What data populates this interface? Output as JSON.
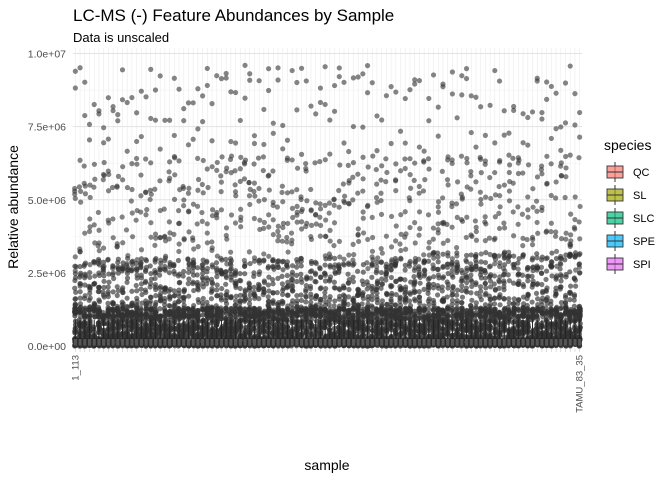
{
  "chart_data": {
    "type": "box",
    "title": "LC-MS (-) Feature Abundances by Sample",
    "subtitle": "Data is unscaled",
    "xlabel": "sample",
    "ylabel": "Relative abundance",
    "ylim": [
      0,
      10000000
    ],
    "yticks": [
      {
        "value": 0,
        "label": "0.0e+00"
      },
      {
        "value": 2500000,
        "label": "2.5e+06"
      },
      {
        "value": 5000000,
        "label": "5.0e+06"
      },
      {
        "value": 7500000,
        "label": "7.5e+06"
      },
      {
        "value": 10000000,
        "label": "1.0e+07"
      }
    ],
    "grid": true,
    "sample_count": 108,
    "visible_x_tick_labels": [
      "1_113",
      "TAMU_83_35"
    ],
    "legend": {
      "title": "species",
      "position": "right",
      "entries": [
        {
          "name": "QC",
          "color": "#F8766D"
        },
        {
          "name": "SL",
          "color": "#A3A500"
        },
        {
          "name": "SLC",
          "color": "#00BF7D"
        },
        {
          "name": "SPE",
          "color": "#00B0F6"
        },
        {
          "name": "SPI",
          "color": "#E76BF3"
        }
      ]
    },
    "point_color": "#333333",
    "outlier_max_approx": 9600000
  }
}
